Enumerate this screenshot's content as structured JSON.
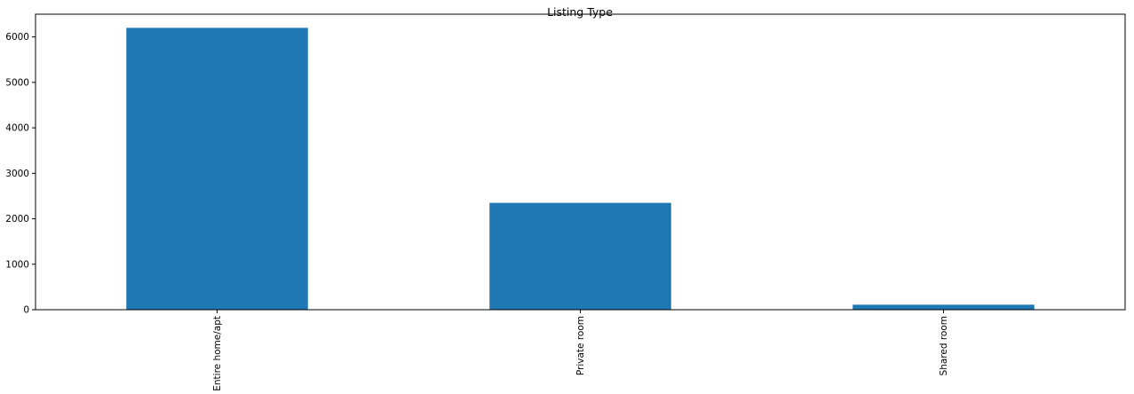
{
  "chart_data": {
    "type": "bar",
    "title": "Listing Type",
    "xlabel": "",
    "ylabel": "",
    "categories": [
      "Entire home/apt",
      "Private room",
      "Shared room"
    ],
    "values": [
      6200,
      2350,
      110
    ],
    "ylim": [
      0,
      6500
    ],
    "yticks": [
      0,
      1000,
      2000,
      3000,
      4000,
      5000,
      6000
    ],
    "grid": false,
    "bar_color": "#1f77b4"
  }
}
